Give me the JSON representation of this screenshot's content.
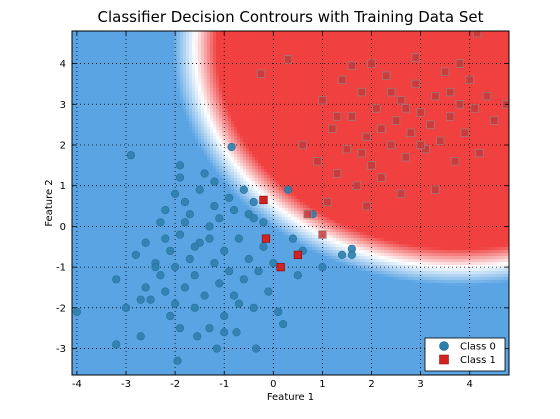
{
  "chart_data": {
    "type": "scatter",
    "title": "Classifier Decision Contrours with Training Data Set",
    "xlabel": "Feature 1",
    "ylabel": "Feature 2",
    "xlim": [
      -4.1,
      4.8
    ],
    "ylim": [
      -3.65,
      4.8
    ],
    "xticks": [
      "-4",
      "-3",
      "-2",
      "-1",
      "0",
      "1",
      "2",
      "3",
      "4"
    ],
    "yticks": [
      "-3",
      "-2",
      "-1",
      "0",
      "1",
      "2",
      "3",
      "4"
    ],
    "grid": true,
    "legend": {
      "position": "bottom-right",
      "entries": [
        "Class 0",
        "Class 1"
      ]
    },
    "decision_boundary": {
      "form": "(x - 3.8)^2 + (y - 4.4)^2 = r^2",
      "center": [
        3.8,
        4.4
      ],
      "radius": 5.4,
      "transition_width": 0.45
    },
    "colors": {
      "class0_region": "#5aa4e4",
      "class1_region": "#f04040",
      "class0_marker": "#2d7fae",
      "class1_marker": "#d22222",
      "class0_marker_dark": "#2a6f96"
    },
    "series": [
      {
        "name": "Class 0",
        "marker": "circle",
        "points": [
          [
            -4.0,
            -2.1
          ],
          [
            -3.2,
            -2.9
          ],
          [
            -3.2,
            -1.3
          ],
          [
            -2.9,
            1.75
          ],
          [
            -2.8,
            -0.7
          ],
          [
            -2.7,
            -2.7
          ],
          [
            -2.6,
            -1.5
          ],
          [
            -2.6,
            -0.4
          ],
          [
            -2.5,
            -1.8
          ],
          [
            -2.4,
            -0.9
          ],
          [
            -2.3,
            0.1
          ],
          [
            -2.3,
            -1.2
          ],
          [
            -2.2,
            0.4
          ],
          [
            -2.2,
            -0.3
          ],
          [
            -2.1,
            -2.2
          ],
          [
            -2.1,
            -0.6
          ],
          [
            -2.0,
            0.8
          ],
          [
            -2.0,
            -1.0
          ],
          [
            -1.95,
            -3.3
          ],
          [
            -1.9,
            1.5
          ],
          [
            -1.9,
            1.2
          ],
          [
            -1.9,
            -0.2
          ],
          [
            -1.8,
            -1.5
          ],
          [
            -1.8,
            0.6
          ],
          [
            -1.7,
            -0.8
          ],
          [
            -1.7,
            0.3
          ],
          [
            -1.6,
            -2.0
          ],
          [
            -1.6,
            -1.2
          ],
          [
            -1.5,
            0.9
          ],
          [
            -1.5,
            -0.4
          ],
          [
            -1.4,
            1.3
          ],
          [
            -1.4,
            -1.7
          ],
          [
            -1.3,
            0.0
          ],
          [
            -1.3,
            -2.5
          ],
          [
            -1.2,
            -0.9
          ],
          [
            -1.2,
            0.5
          ],
          [
            -1.15,
            -3.0
          ],
          [
            -1.1,
            -1.4
          ],
          [
            -1.1,
            0.2
          ],
          [
            -1.0,
            -0.6
          ],
          [
            -1.0,
            -2.2
          ],
          [
            -0.9,
            0.7
          ],
          [
            -0.9,
            -1.1
          ],
          [
            -0.85,
            1.95
          ],
          [
            -0.8,
            0.4
          ],
          [
            -0.8,
            -1.7
          ],
          [
            -0.75,
            -2.6
          ],
          [
            -0.7,
            -0.3
          ],
          [
            -0.6,
            0.9
          ],
          [
            -0.6,
            -1.3
          ],
          [
            -0.5,
            -0.8
          ],
          [
            -0.5,
            0.3
          ],
          [
            -0.4,
            -2.0
          ],
          [
            -0.4,
            0.6
          ],
          [
            -0.35,
            -3.0
          ],
          [
            -0.3,
            -1.1
          ],
          [
            -0.2,
            0.1
          ],
          [
            -0.2,
            -0.5
          ],
          [
            -0.1,
            -1.6
          ],
          [
            0.0,
            -0.9
          ],
          [
            0.1,
            -2.1
          ],
          [
            0.2,
            -2.4
          ],
          [
            0.3,
            0.9
          ],
          [
            0.4,
            -0.3
          ],
          [
            0.5,
            -1.2
          ],
          [
            0.6,
            -0.6
          ],
          [
            0.8,
            0.3
          ],
          [
            1.0,
            -1.0
          ],
          [
            1.4,
            -0.7
          ],
          [
            1.6,
            -0.55
          ],
          [
            1.6,
            -0.7
          ],
          [
            -1.9,
            -2.5
          ],
          [
            -2.2,
            -1.6
          ],
          [
            -1.55,
            -2.7
          ],
          [
            -1.0,
            -2.6
          ],
          [
            -1.3,
            -0.3
          ],
          [
            -0.7,
            -1.9
          ],
          [
            -2.4,
            -1.0
          ],
          [
            -3.0,
            -2.0
          ],
          [
            -2.7,
            -1.8
          ],
          [
            -1.8,
            0.1
          ],
          [
            -1.2,
            1.1
          ],
          [
            -0.4,
            0.2
          ],
          [
            -1.6,
            -0.5
          ],
          [
            -2.0,
            -1.9
          ]
        ]
      },
      {
        "name": "Class 1",
        "marker": "square",
        "points": [
          [
            -0.25,
            3.75
          ],
          [
            0.3,
            4.1
          ],
          [
            0.6,
            2.0
          ],
          [
            0.9,
            1.6
          ],
          [
            1.0,
            3.1
          ],
          [
            1.1,
            0.6
          ],
          [
            1.2,
            2.4
          ],
          [
            1.3,
            1.3
          ],
          [
            1.4,
            3.6
          ],
          [
            1.5,
            1.9
          ],
          [
            1.6,
            2.7
          ],
          [
            1.7,
            1.0
          ],
          [
            1.8,
            3.3
          ],
          [
            1.9,
            2.2
          ],
          [
            2.0,
            1.5
          ],
          [
            2.0,
            4.0
          ],
          [
            2.1,
            2.9
          ],
          [
            2.2,
            1.2
          ],
          [
            2.3,
            3.7
          ],
          [
            2.4,
            2.0
          ],
          [
            2.5,
            2.6
          ],
          [
            2.6,
            3.1
          ],
          [
            2.7,
            1.7
          ],
          [
            2.8,
            2.3
          ],
          [
            2.9,
            3.5
          ],
          [
            3.0,
            2.8
          ],
          [
            3.1,
            1.9
          ],
          [
            3.2,
            2.5
          ],
          [
            3.3,
            3.2
          ],
          [
            3.4,
            2.1
          ],
          [
            3.5,
            3.8
          ],
          [
            3.6,
            2.7
          ],
          [
            3.7,
            1.6
          ],
          [
            3.8,
            3.0
          ],
          [
            3.9,
            2.3
          ],
          [
            4.0,
            3.6
          ],
          [
            4.1,
            2.9
          ],
          [
            4.2,
            1.8
          ],
          [
            4.35,
            3.2
          ],
          [
            4.5,
            2.6
          ],
          [
            4.75,
            3.0
          ],
          [
            4.15,
            4.75
          ],
          [
            3.3,
            0.9
          ],
          [
            2.6,
            0.8
          ],
          [
            1.9,
            0.5
          ],
          [
            3.8,
            4.0
          ],
          [
            1.6,
            3.95
          ],
          [
            2.9,
            4.15
          ],
          [
            1.3,
            2.7
          ],
          [
            2.2,
            2.4
          ],
          [
            2.4,
            3.3
          ],
          [
            3.6,
            3.3
          ],
          [
            3.0,
            2.0
          ],
          [
            1.8,
            1.8
          ],
          [
            2.7,
            2.9
          ],
          [
            -0.2,
            0.65
          ],
          [
            -0.15,
            -0.3
          ],
          [
            0.15,
            -1.0
          ],
          [
            0.5,
            -0.7
          ],
          [
            0.7,
            0.3
          ],
          [
            1.0,
            -0.2
          ]
        ]
      }
    ]
  }
}
